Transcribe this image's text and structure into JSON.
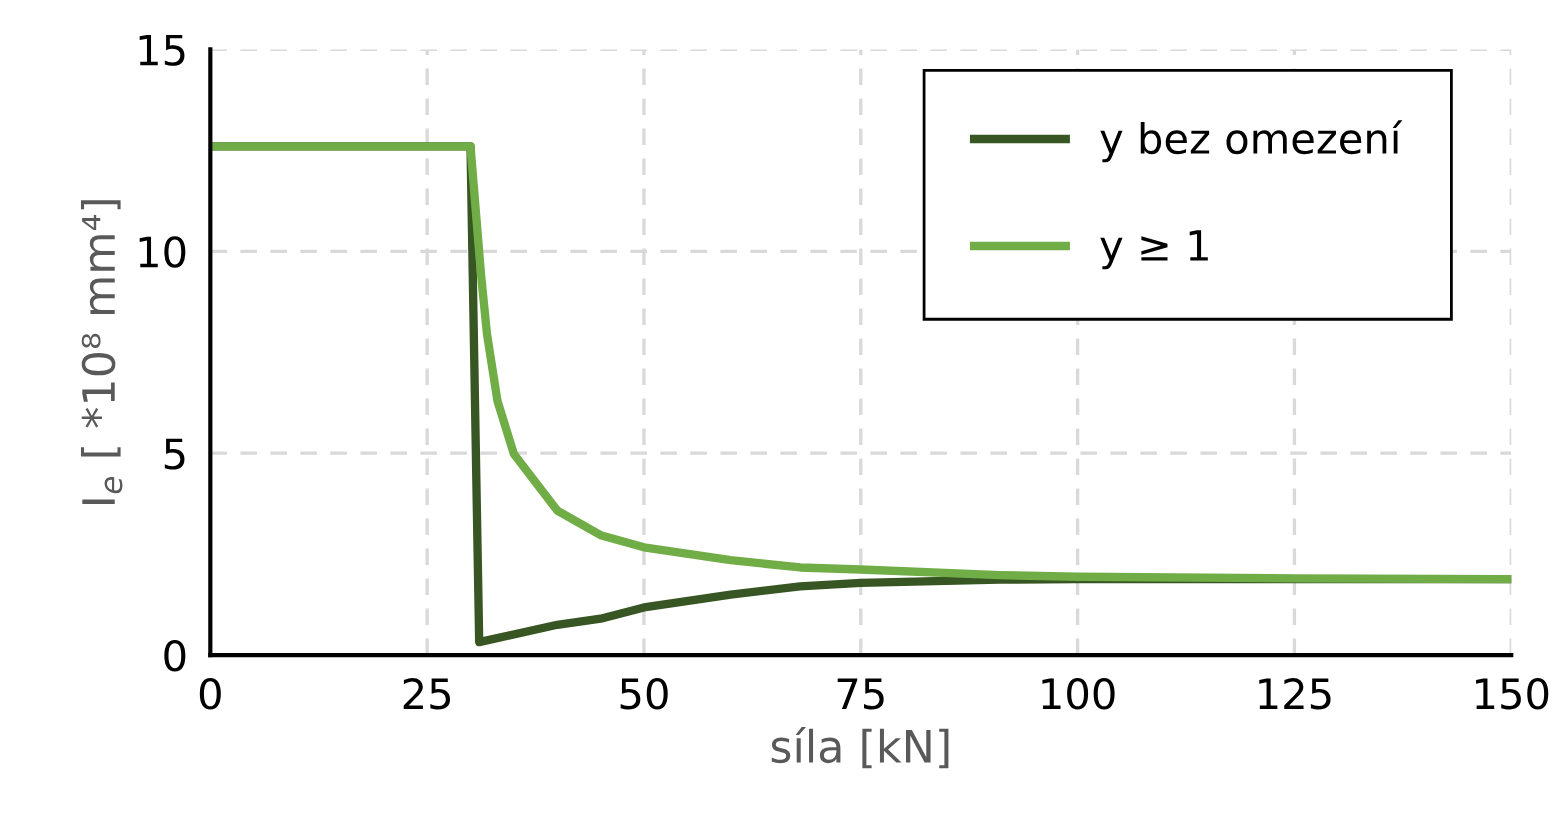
{
  "chart_data": {
    "type": "line",
    "xlabel": "síla [kN]",
    "ylabel": "I$_{e}$ [ *10⁸ mm⁴]",
    "xlim": [
      0,
      150
    ],
    "ylim": [
      0,
      15
    ],
    "xticks": [
      0,
      25,
      50,
      75,
      100,
      125,
      150
    ],
    "yticks": [
      0,
      5,
      10,
      15
    ],
    "grid": true,
    "line_style": "solid",
    "legend": "top right",
    "series": [
      {
        "name": "y bez omezení",
        "color": "#375623",
        "x": [
          0,
          30,
          31,
          40,
          45,
          50,
          60,
          68,
          75,
          91,
          100,
          125,
          150
        ],
        "values": [
          12.6,
          12.6,
          0.32,
          0.75,
          0.9,
          1.18,
          1.5,
          1.7,
          1.79,
          1.87,
          1.88,
          1.88,
          1.88
        ]
      },
      {
        "name": "y ≥ 1",
        "color": "#70ad47",
        "x": [
          0,
          30,
          31.2,
          31.9,
          33.1,
          35,
          40,
          45,
          50,
          60,
          68,
          75,
          91,
          100,
          125,
          150
        ],
        "values": [
          12.6,
          12.6,
          9.45,
          7.95,
          6.3,
          4.98,
          3.58,
          2.97,
          2.67,
          2.35,
          2.17,
          2.12,
          1.98,
          1.94,
          1.9,
          1.88
        ]
      }
    ]
  }
}
